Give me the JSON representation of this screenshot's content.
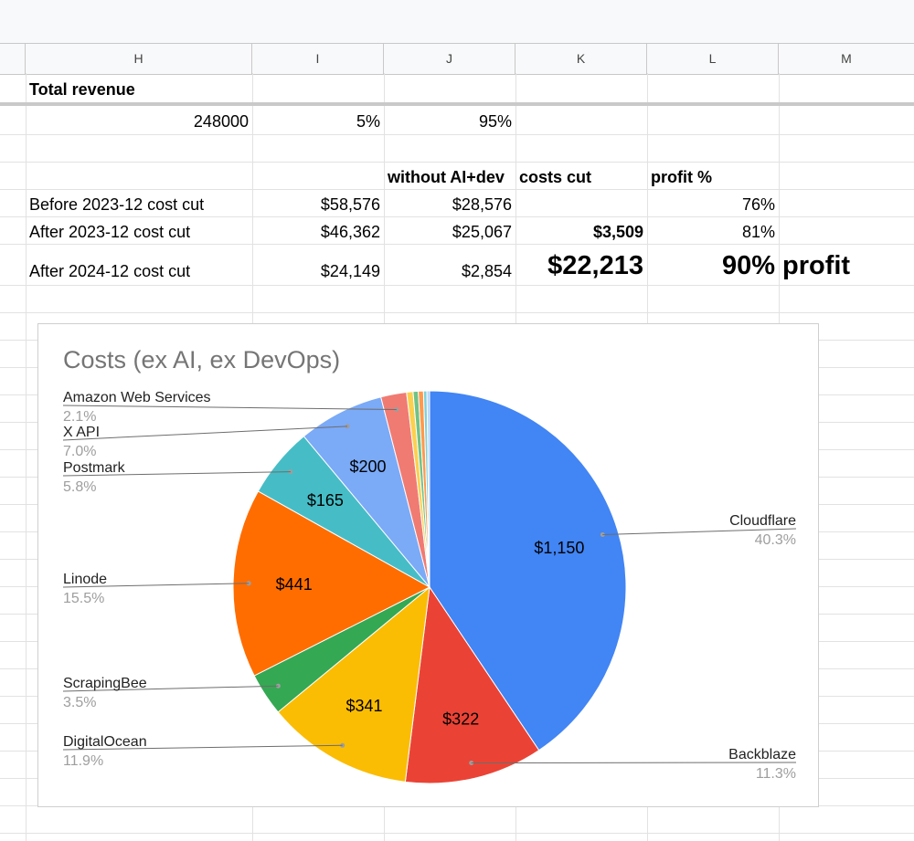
{
  "columns": [
    "H",
    "I",
    "J",
    "K",
    "L",
    "M"
  ],
  "sheet": {
    "title_cell": "Total revenue",
    "row_revenue": {
      "total": "248000",
      "pct_a": "5%",
      "pct_b": "95%"
    },
    "headers": {
      "without": "without AI+dev",
      "costs_cut": "costs cut",
      "profit": "profit %"
    },
    "rows": [
      {
        "label": "Before 2023-12 cost cut",
        "total": "$58,576",
        "without": "$28,576",
        "cut": "",
        "profit": "76%"
      },
      {
        "label": "After 2023-12 cost cut",
        "total": "$46,362",
        "without": "$25,067",
        "cut": "$3,509",
        "profit": "81%"
      },
      {
        "label": "After 2024-12 cost cut",
        "total": "$24,149",
        "without": "$2,854",
        "cut": "$22,213",
        "profit": "90%",
        "note": "profit"
      }
    ]
  },
  "chart_data": {
    "type": "pie",
    "title": "Costs (ex AI, ex DevOps)",
    "slices": [
      {
        "name": "Cloudflare",
        "value": 1150,
        "value_label": "$1,150",
        "percent": "40.3%",
        "color": "#4285f4"
      },
      {
        "name": "Backblaze",
        "value": 322,
        "value_label": "$322",
        "percent": "11.3%",
        "color": "#ea4335"
      },
      {
        "name": "DigitalOcean",
        "value": 341,
        "value_label": "$341",
        "percent": "11.9%",
        "color": "#fbbc04"
      },
      {
        "name": "ScrapingBee",
        "value": 100,
        "value_label": "",
        "percent": "3.5%",
        "color": "#34a853"
      },
      {
        "name": "Linode",
        "value": 441,
        "value_label": "$441",
        "percent": "15.5%",
        "color": "#ff6d01"
      },
      {
        "name": "Postmark",
        "value": 165,
        "value_label": "$165",
        "percent": "5.8%",
        "color": "#46bdc6"
      },
      {
        "name": "X API",
        "value": 200,
        "value_label": "$200",
        "percent": "7.0%",
        "color": "#7baaf7"
      },
      {
        "name": "Amazon Web Services",
        "value": 60,
        "value_label": "",
        "percent": "2.1%",
        "color": "#f07b72"
      },
      {
        "name": "",
        "value": 15,
        "value_label": "",
        "percent": "",
        "color": "#fcd04f"
      },
      {
        "name": "",
        "value": 12,
        "value_label": "",
        "percent": "",
        "color": "#71c287"
      },
      {
        "name": "",
        "value": 12,
        "value_label": "",
        "percent": "",
        "color": "#ff994d"
      },
      {
        "name": "",
        "value": 8,
        "value_label": "",
        "percent": "",
        "color": "#7ed1d7"
      },
      {
        "name": "",
        "value": 6,
        "value_label": "",
        "percent": "",
        "color": "#b3cefb"
      }
    ]
  }
}
